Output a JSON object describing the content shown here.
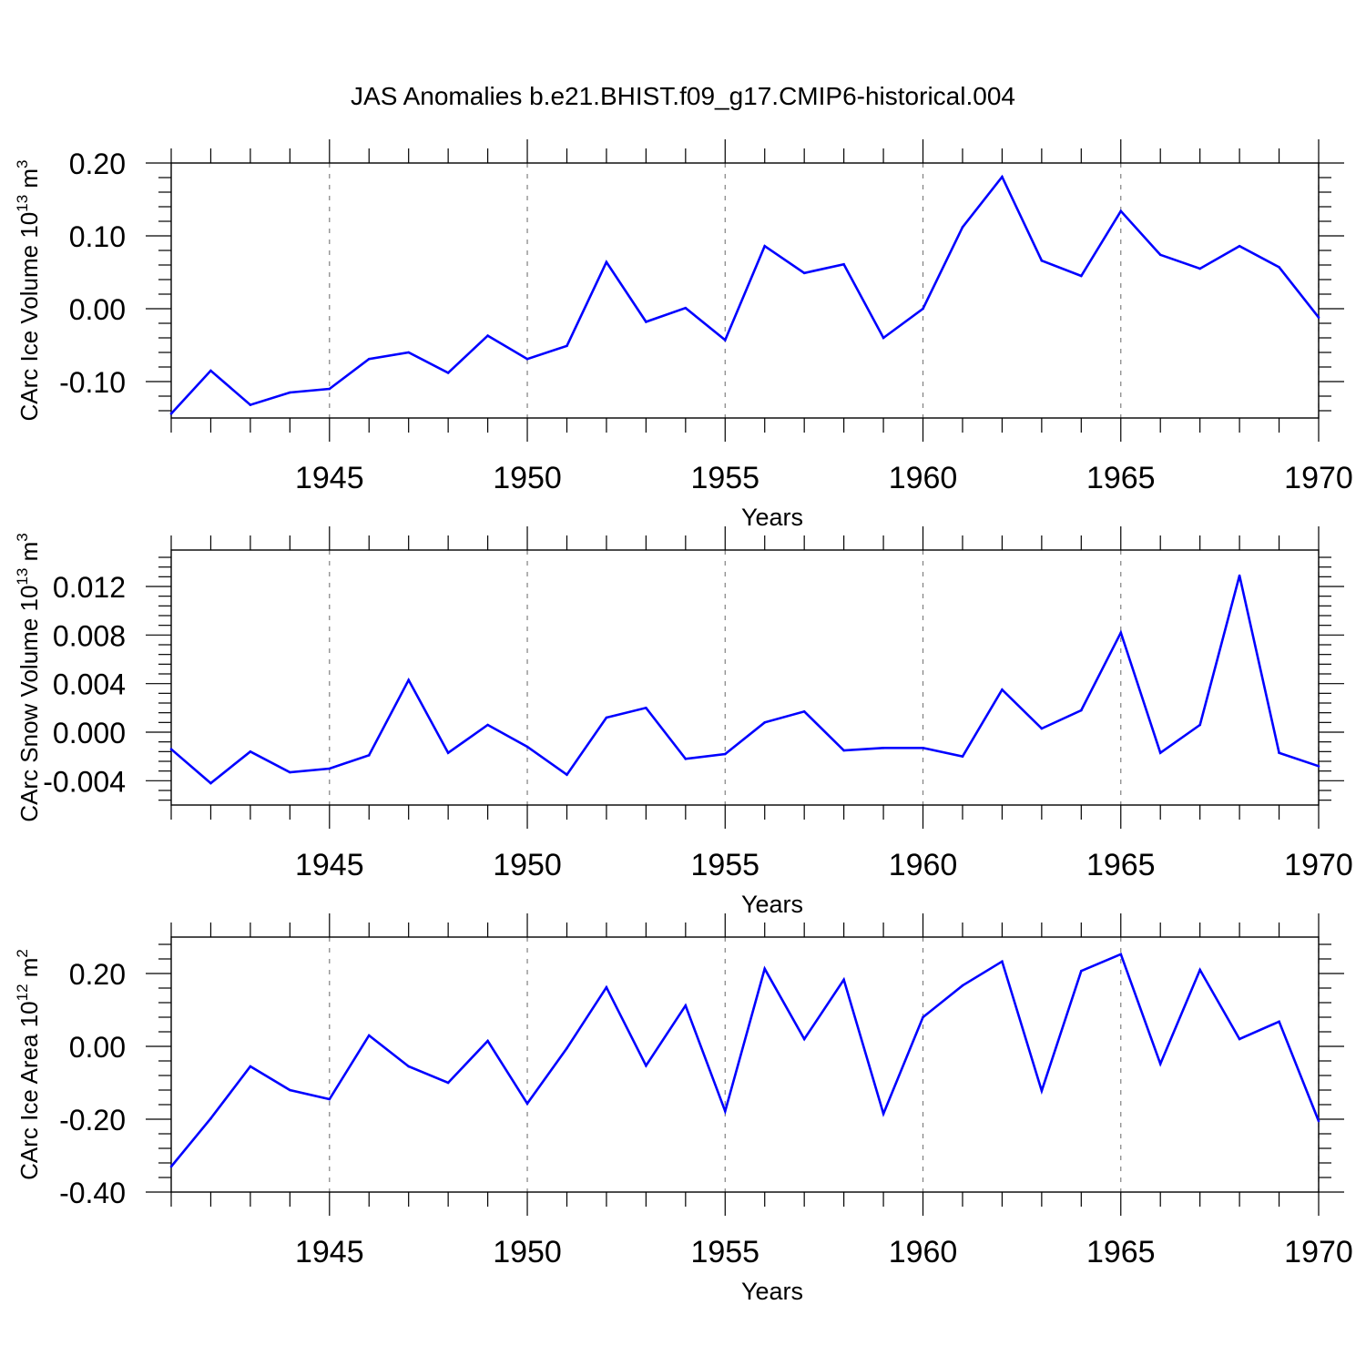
{
  "title": "JAS Anomalies b.e21.BHIST.f09_g17.CMIP6-historical.004",
  "colors": {
    "line": "#0000ff",
    "axis": "#000000",
    "grid": "#808080",
    "background": "#ffffff"
  },
  "chart_data": [
    {
      "type": "line",
      "ylabel": "CArc Ice Volume 10",
      "ylabel_exp": "13",
      "ylabel_unit": "m",
      "ylabel_unit_exp": "3",
      "xlabel": "Years",
      "xlim": [
        1941,
        1970
      ],
      "ylim": [
        -0.15,
        0.2
      ],
      "yticks": [
        -0.1,
        0.0,
        0.1,
        0.2
      ],
      "ytick_labels": [
        "-0.10",
        "0.00",
        "0.10",
        "0.20"
      ],
      "xticks": [
        1945,
        1950,
        1955,
        1960,
        1965,
        1970
      ],
      "xtick_labels": [
        "1945",
        "1950",
        "1955",
        "1960",
        "1965",
        "1970"
      ],
      "x": [
        1941,
        1942,
        1943,
        1944,
        1945,
        1946,
        1947,
        1948,
        1949,
        1950,
        1951,
        1952,
        1953,
        1954,
        1955,
        1956,
        1957,
        1958,
        1959,
        1960,
        1961,
        1962,
        1963,
        1964,
        1965,
        1966,
        1967,
        1968,
        1969,
        1970
      ],
      "values": [
        -0.144,
        -0.085,
        -0.132,
        -0.115,
        -0.11,
        -0.069,
        -0.06,
        -0.088,
        -0.037,
        -0.069,
        -0.051,
        0.064,
        -0.018,
        0.001,
        -0.043,
        0.086,
        0.049,
        0.061,
        -0.04,
        0.0,
        0.112,
        0.181,
        0.066,
        0.045,
        0.134,
        0.074,
        0.055,
        0.086,
        0.057,
        -0.012
      ]
    },
    {
      "type": "line",
      "ylabel": "CArc Snow Volume 10",
      "ylabel_exp": "13",
      "ylabel_unit": "m",
      "ylabel_unit_exp": "3",
      "xlabel": "Years",
      "xlim": [
        1941,
        1970
      ],
      "ylim": [
        -0.006,
        0.015
      ],
      "yticks": [
        -0.004,
        0.0,
        0.004,
        0.008,
        0.012
      ],
      "ytick_labels": [
        "-0.004",
        "0.000",
        "0.004",
        "0.008",
        "0.012"
      ],
      "xticks": [
        1945,
        1950,
        1955,
        1960,
        1965,
        1970
      ],
      "xtick_labels": [
        "1945",
        "1950",
        "1955",
        "1960",
        "1965",
        "1970"
      ],
      "x": [
        1941,
        1942,
        1943,
        1944,
        1945,
        1946,
        1947,
        1948,
        1949,
        1950,
        1951,
        1952,
        1953,
        1954,
        1955,
        1956,
        1957,
        1958,
        1959,
        1960,
        1961,
        1962,
        1963,
        1964,
        1965,
        1966,
        1967,
        1968,
        1969,
        1970
      ],
      "values": [
        -0.0014,
        -0.0042,
        -0.0016,
        -0.0033,
        -0.003,
        -0.0019,
        0.0043,
        -0.0017,
        0.0006,
        -0.0012,
        -0.0035,
        0.0012,
        0.002,
        -0.0022,
        -0.0018,
        0.0008,
        0.0017,
        -0.0015,
        -0.0013,
        -0.0013,
        -0.002,
        0.0035,
        0.0003,
        0.0018,
        0.0082,
        -0.0017,
        0.0006,
        0.0129,
        -0.0017,
        -0.0028
      ]
    },
    {
      "type": "line",
      "ylabel": "CArc Ice Area 10",
      "ylabel_exp": "12",
      "ylabel_unit": "m",
      "ylabel_unit_exp": "2",
      "xlabel": "Years",
      "xlim": [
        1941,
        1970
      ],
      "ylim": [
        -0.4,
        0.3
      ],
      "yticks": [
        -0.4,
        -0.2,
        0.0,
        0.2
      ],
      "ytick_labels": [
        "-0.40",
        "-0.20",
        "0.00",
        "0.20"
      ],
      "xticks": [
        1945,
        1950,
        1955,
        1960,
        1965,
        1970
      ],
      "xtick_labels": [
        "1945",
        "1950",
        "1955",
        "1960",
        "1965",
        "1970"
      ],
      "x": [
        1941,
        1942,
        1943,
        1944,
        1945,
        1946,
        1947,
        1948,
        1949,
        1950,
        1951,
        1952,
        1953,
        1954,
        1955,
        1956,
        1957,
        1958,
        1959,
        1960,
        1961,
        1962,
        1963,
        1964,
        1965,
        1966,
        1967,
        1968,
        1969,
        1970
      ],
      "values": [
        -0.33,
        -0.198,
        -0.055,
        -0.12,
        -0.145,
        0.03,
        -0.055,
        -0.1,
        0.015,
        -0.157,
        -0.005,
        0.162,
        -0.053,
        0.112,
        -0.178,
        0.213,
        0.02,
        0.183,
        -0.185,
        0.08,
        0.167,
        0.233,
        -0.122,
        0.207,
        0.253,
        -0.048,
        0.21,
        0.02,
        0.068,
        -0.205
      ]
    }
  ]
}
